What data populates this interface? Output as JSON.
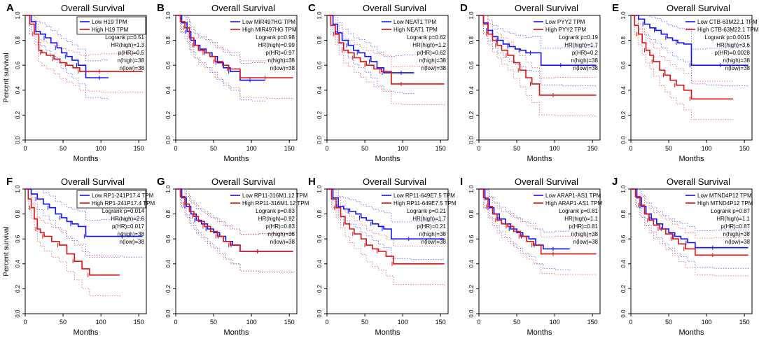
{
  "colors": {
    "low": "#1010ff",
    "high": "#e01010",
    "axis": "#000000",
    "background": "#ffffff"
  },
  "common": {
    "title": "Overall Survival",
    "xlabel": "Months",
    "ylabel": "Percent survival",
    "xticks": [
      "0",
      "50",
      "100",
      "150"
    ],
    "yticks": [
      "0.0",
      "0.2",
      "0.4",
      "0.6",
      "0.8",
      "1.0"
    ]
  },
  "chart_data": [
    {
      "type": "line",
      "panel": "A",
      "title": "Overall Survival",
      "xlabel": "Months",
      "ylabel": "Percent survival",
      "xlim": [
        0,
        160
      ],
      "ylim": [
        0,
        1
      ],
      "legend": [
        "Low H19 TPM",
        "High H19 TPM"
      ],
      "stats": [
        "Logrank p=0.51",
        "HR(high)=1.3",
        "p(HR)=0.5",
        "n(high)=38",
        "n(low)=38"
      ],
      "series": [
        {
          "name": "Low H19 TPM",
          "color": "#1010ff",
          "x": [
            0,
            8,
            14,
            20,
            27,
            34,
            42,
            48,
            55,
            62,
            70,
            80,
            100,
            110
          ],
          "y": [
            1.0,
            0.95,
            0.87,
            0.85,
            0.82,
            0.78,
            0.74,
            0.7,
            0.67,
            0.64,
            0.6,
            0.5,
            0.5,
            0.5
          ]
        },
        {
          "name": "High H19 TPM",
          "color": "#e01010",
          "x": [
            0,
            6,
            12,
            18,
            22,
            28,
            38,
            46,
            55,
            63,
            72,
            85,
            100,
            155
          ],
          "y": [
            1.0,
            0.93,
            0.85,
            0.72,
            0.7,
            0.68,
            0.65,
            0.62,
            0.6,
            0.58,
            0.55,
            0.55,
            0.55,
            0.55
          ]
        }
      ]
    },
    {
      "type": "line",
      "panel": "B",
      "title": "Overall Survival",
      "xlabel": "Months",
      "ylabel": "Percent survival",
      "xlim": [
        0,
        160
      ],
      "ylim": [
        0,
        1
      ],
      "legend": [
        "Low MIR497HG TPM",
        "High MIR497HG TPM"
      ],
      "stats": [
        "Logrank p=0.98",
        "HR(high)=0.99",
        "p(HR)=0.97",
        "n(high)=38",
        "n(low)=38"
      ],
      "series": [
        {
          "name": "Low MIR497HG TPM",
          "color": "#1010ff",
          "x": [
            0,
            8,
            15,
            20,
            26,
            32,
            40,
            48,
            55,
            63,
            72,
            85,
            100,
            118
          ],
          "y": [
            1.0,
            0.94,
            0.87,
            0.8,
            0.76,
            0.73,
            0.7,
            0.67,
            0.62,
            0.58,
            0.55,
            0.48,
            0.48,
            0.48
          ]
        },
        {
          "name": "High MIR497HG TPM",
          "color": "#e01010",
          "x": [
            0,
            6,
            12,
            18,
            24,
            30,
            38,
            45,
            52,
            62,
            70,
            85,
            120,
            155
          ],
          "y": [
            1.0,
            0.95,
            0.9,
            0.82,
            0.76,
            0.72,
            0.7,
            0.67,
            0.63,
            0.6,
            0.57,
            0.5,
            0.5,
            0.5
          ]
        }
      ]
    },
    {
      "type": "line",
      "panel": "C",
      "title": "Overall Survival",
      "xlabel": "Months",
      "ylabel": "Percent survival",
      "xlim": [
        0,
        160
      ],
      "ylim": [
        0,
        1
      ],
      "legend": [
        "Low NEAT1 TPM",
        "High NEAT1 TPM"
      ],
      "stats": [
        "Logrank p=0.62",
        "HR(high)=1.2",
        "p(HR)=0.62",
        "n(high)=38",
        "n(low)=38"
      ],
      "series": [
        {
          "name": "Low NEAT1 TPM",
          "color": "#1010ff",
          "x": [
            0,
            8,
            14,
            20,
            28,
            35,
            42,
            50,
            58,
            66,
            75,
            90,
            100,
            115
          ],
          "y": [
            1.0,
            0.93,
            0.86,
            0.8,
            0.76,
            0.72,
            0.7,
            0.67,
            0.63,
            0.58,
            0.54,
            0.54,
            0.54,
            0.54
          ]
        },
        {
          "name": "High NEAT1 TPM",
          "color": "#e01010",
          "x": [
            0,
            5,
            11,
            16,
            22,
            28,
            36,
            44,
            52,
            62,
            72,
            85,
            100,
            155
          ],
          "y": [
            1.0,
            0.92,
            0.85,
            0.78,
            0.72,
            0.7,
            0.66,
            0.63,
            0.6,
            0.57,
            0.55,
            0.45,
            0.45,
            0.45
          ]
        }
      ]
    },
    {
      "type": "line",
      "panel": "D",
      "title": "Overall Survival",
      "xlabel": "Months",
      "ylabel": "Percent survival",
      "xlim": [
        0,
        160
      ],
      "ylim": [
        0,
        1
      ],
      "legend": [
        "Low PYY2 TPM",
        "High PYY2 TPM"
      ],
      "stats": [
        "Logrank p=0.19",
        "HR(high)=1.7",
        "p(HR)=0.2",
        "n(high)=38",
        "n(low)=38"
      ],
      "series": [
        {
          "name": "Low PYY2 TPM",
          "color": "#1010ff",
          "x": [
            0,
            6,
            12,
            18,
            25,
            32,
            40,
            48,
            55,
            62,
            70,
            82,
            110,
            155
          ],
          "y": [
            1.0,
            0.94,
            0.88,
            0.83,
            0.8,
            0.77,
            0.75,
            0.73,
            0.72,
            0.7,
            0.7,
            0.6,
            0.6,
            0.6
          ]
        },
        {
          "name": "High PYY2 TPM",
          "color": "#e01010",
          "x": [
            0,
            6,
            12,
            18,
            24,
            30,
            38,
            46,
            54,
            62,
            70,
            80,
            100,
            155
          ],
          "y": [
            1.0,
            0.93,
            0.85,
            0.8,
            0.76,
            0.72,
            0.68,
            0.62,
            0.56,
            0.5,
            0.45,
            0.36,
            0.36,
            0.36
          ]
        }
      ]
    },
    {
      "type": "line",
      "panel": "E",
      "title": "Overall Survival",
      "xlabel": "Months",
      "ylabel": "Percent survival",
      "xlim": [
        0,
        160
      ],
      "ylim": [
        0,
        1
      ],
      "legend": [
        "Low CTB-63M22.1 TPM",
        "High CTB-63M22.1 TPM"
      ],
      "stats": [
        "Logrank p=0.0015",
        "HR(high)=3.6",
        "p(HR)=0.0028",
        "n(high)=38",
        "n(low)=38"
      ],
      "series": [
        {
          "name": "Low CTB-63M22.1 TPM",
          "color": "#1010ff",
          "x": [
            0,
            10,
            18,
            25,
            33,
            40,
            48,
            55,
            62,
            70,
            80,
            100,
            120,
            155
          ],
          "y": [
            1.0,
            0.97,
            0.93,
            0.9,
            0.88,
            0.85,
            0.82,
            0.8,
            0.78,
            0.77,
            0.6,
            0.6,
            0.6,
            0.6
          ]
        },
        {
          "name": "High CTB-63M22.1 TPM",
          "color": "#e01010",
          "x": [
            0,
            5,
            10,
            15,
            20,
            25,
            30,
            38,
            45,
            52,
            60,
            70,
            80,
            135
          ],
          "y": [
            1.0,
            0.92,
            0.85,
            0.78,
            0.72,
            0.68,
            0.63,
            0.56,
            0.52,
            0.48,
            0.44,
            0.4,
            0.33,
            0.33
          ]
        }
      ]
    },
    {
      "type": "line",
      "panel": "F",
      "title": "Overall Survival",
      "xlabel": "Months",
      "ylabel": "Percent survival",
      "xlim": [
        0,
        160
      ],
      "ylim": [
        0,
        1
      ],
      "legend": [
        "Low RP1-241P17.4 TPM",
        "High RP1-241P17.4 TPM"
      ],
      "stats": [
        "Logrank p=0.014",
        "HR(high)=2.6",
        "p(HR)=0.017",
        "n(high)=38",
        "n(low)=38"
      ],
      "series": [
        {
          "name": "Low RP1-241P17.4 TPM",
          "color": "#1010ff",
          "x": [
            0,
            8,
            16,
            24,
            32,
            40,
            48,
            55,
            62,
            70,
            80,
            100,
            130,
            155
          ],
          "y": [
            1.0,
            0.96,
            0.92,
            0.88,
            0.85,
            0.8,
            0.77,
            0.74,
            0.72,
            0.7,
            0.62,
            0.62,
            0.62,
            0.62
          ]
        },
        {
          "name": "High RP1-241P17.4 TPM",
          "color": "#e01010",
          "x": [
            0,
            4,
            8,
            12,
            16,
            20,
            25,
            35,
            45,
            55,
            65,
            75,
            85,
            125
          ],
          "y": [
            1.0,
            0.92,
            0.85,
            0.76,
            0.68,
            0.65,
            0.62,
            0.58,
            0.55,
            0.48,
            0.42,
            0.36,
            0.31,
            0.31
          ]
        }
      ]
    },
    {
      "type": "line",
      "panel": "G",
      "title": "Overall Survival",
      "xlabel": "Months",
      "ylabel": "Percent survival",
      "xlim": [
        0,
        160
      ],
      "ylim": [
        0,
        1
      ],
      "legend": [
        "Low RP11-316M1.12 TPM",
        "High RP11-316M1.12 TPM"
      ],
      "stats": [
        "Logrank p=0.83",
        "HR(high)=0.92",
        "p(HR)=0.83",
        "n(high)=38",
        "n(low)=38"
      ],
      "series": [
        {
          "name": "Low RP11-316M1.12 TPM",
          "color": "#1010ff",
          "x": [
            0,
            8,
            14,
            20,
            27,
            34,
            42,
            50,
            58,
            66,
            75,
            85,
            110,
            155
          ],
          "y": [
            1.0,
            0.93,
            0.86,
            0.8,
            0.75,
            0.72,
            0.68,
            0.65,
            0.62,
            0.58,
            0.55,
            0.5,
            0.5,
            0.5
          ]
        },
        {
          "name": "High RP11-316M1.12 TPM",
          "color": "#e01010",
          "x": [
            0,
            6,
            12,
            18,
            24,
            30,
            38,
            46,
            55,
            63,
            72,
            85,
            110,
            155
          ],
          "y": [
            1.0,
            0.94,
            0.88,
            0.82,
            0.78,
            0.74,
            0.7,
            0.66,
            0.62,
            0.58,
            0.55,
            0.5,
            0.5,
            0.5
          ]
        }
      ]
    },
    {
      "type": "line",
      "panel": "H",
      "title": "Overall Survival",
      "xlabel": "Months",
      "ylabel": "Percent survival",
      "xlim": [
        0,
        160
      ],
      "ylim": [
        0,
        1
      ],
      "legend": [
        "Low RP11-649E7.5 TPM",
        "High RP11-649E7.5 TPM"
      ],
      "stats": [
        "Logrank p=0.21",
        "HR(high)=1.7",
        "p(HR)=0.21",
        "n(high)=38",
        "n(low)=38"
      ],
      "series": [
        {
          "name": "Low RP11-649E7.5 TPM",
          "color": "#1010ff",
          "x": [
            0,
            8,
            15,
            22,
            30,
            38,
            45,
            52,
            60,
            68,
            75,
            85,
            110,
            155
          ],
          "y": [
            1.0,
            0.93,
            0.86,
            0.84,
            0.82,
            0.8,
            0.77,
            0.75,
            0.72,
            0.7,
            0.68,
            0.6,
            0.6,
            0.6
          ]
        },
        {
          "name": "High RP11-649E7.5 TPM",
          "color": "#e01010",
          "x": [
            0,
            6,
            12,
            18,
            24,
            30,
            36,
            45,
            52,
            60,
            68,
            78,
            88,
            155
          ],
          "y": [
            1.0,
            0.92,
            0.85,
            0.78,
            0.72,
            0.68,
            0.64,
            0.6,
            0.55,
            0.52,
            0.5,
            0.46,
            0.4,
            0.4
          ]
        }
      ]
    },
    {
      "type": "line",
      "panel": "I",
      "title": "Overall Survival",
      "xlabel": "Months",
      "ylabel": "Percent survival",
      "xlim": [
        0,
        160
      ],
      "ylim": [
        0,
        1
      ],
      "legend": [
        "Low ARAP1-AS1 TPM",
        "High ARAP1-AS1 TPM"
      ],
      "stats": [
        "Logrank p=0.81",
        "HR(high)=1.1",
        "p(HR)=0.81",
        "n(high)=38",
        "n(low)=38"
      ],
      "series": [
        {
          "name": "Low ARAP1-AS1 TPM",
          "color": "#1010ff",
          "x": [
            0,
            8,
            14,
            20,
            27,
            35,
            42,
            50,
            58,
            66,
            75,
            85,
            100,
            120
          ],
          "y": [
            1.0,
            0.92,
            0.85,
            0.8,
            0.76,
            0.72,
            0.68,
            0.65,
            0.62,
            0.6,
            0.55,
            0.52,
            0.52,
            0.52
          ]
        },
        {
          "name": "High ARAP1-AS1 TPM",
          "color": "#e01010",
          "x": [
            0,
            6,
            12,
            18,
            24,
            30,
            38,
            46,
            55,
            63,
            72,
            82,
            100,
            155
          ],
          "y": [
            1.0,
            0.93,
            0.86,
            0.8,
            0.75,
            0.72,
            0.7,
            0.66,
            0.62,
            0.58,
            0.55,
            0.48,
            0.48,
            0.48
          ]
        }
      ]
    },
    {
      "type": "line",
      "panel": "J",
      "title": "Overall Survival",
      "xlabel": "Months",
      "ylabel": "Percent survival",
      "xlim": [
        0,
        160
      ],
      "ylim": [
        0,
        1
      ],
      "legend": [
        "Low MTND4P12 TPM",
        "High MTND4P12 TPM"
      ],
      "stats": [
        "Logrank p=0.87",
        "HR(high)=1.1",
        "p(HR)=0.87",
        "n(high)=38",
        "n(low)=38"
      ],
      "series": [
        {
          "name": "Low MTND4P12 TPM",
          "color": "#1010ff",
          "x": [
            0,
            8,
            14,
            20,
            27,
            34,
            42,
            50,
            58,
            66,
            75,
            85,
            110,
            155
          ],
          "y": [
            1.0,
            0.93,
            0.86,
            0.8,
            0.76,
            0.72,
            0.68,
            0.65,
            0.62,
            0.6,
            0.57,
            0.53,
            0.53,
            0.53
          ]
        },
        {
          "name": "High MTND4P12 TPM",
          "color": "#e01010",
          "x": [
            0,
            6,
            12,
            18,
            24,
            30,
            38,
            46,
            55,
            63,
            72,
            85,
            110,
            155
          ],
          "y": [
            1.0,
            0.94,
            0.87,
            0.8,
            0.75,
            0.71,
            0.68,
            0.64,
            0.6,
            0.56,
            0.52,
            0.47,
            0.47,
            0.47
          ]
        }
      ]
    }
  ]
}
